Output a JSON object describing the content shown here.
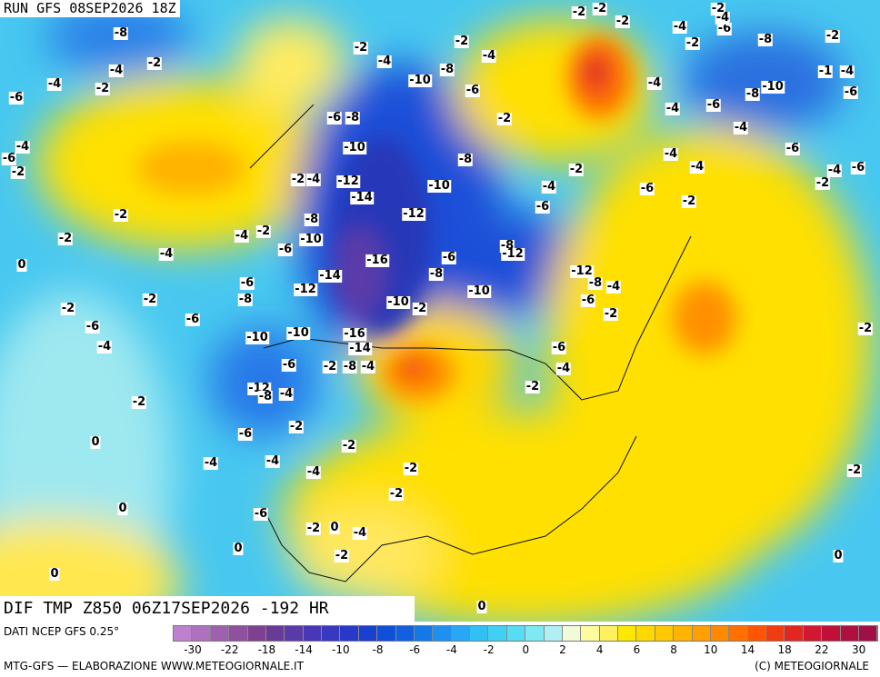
{
  "header": {
    "run": "RUN GFS 08SEP2026 18Z"
  },
  "map": {
    "contour_labels": [
      "-8",
      "-2",
      "-4",
      "-4",
      "-2",
      "-6",
      "-4",
      "-6",
      "-2",
      "-2",
      "-2",
      "0",
      "-4",
      "-2",
      "-2",
      "-6",
      "-4",
      "-6",
      "-2",
      "0",
      "0",
      "-4",
      "0",
      "0",
      "-2",
      "-4",
      "-10",
      "-8",
      "-2",
      "-4",
      "-6",
      "-2",
      "-6",
      "-8",
      "-10",
      "-8",
      "-10",
      "-12",
      "-14",
      "-12",
      "-2",
      "-4",
      "-8",
      "-10",
      "-6",
      "-4",
      "-2",
      "-16",
      "-6",
      "-8",
      "-8",
      "-12",
      "-14",
      "-12",
      "-6",
      "-8",
      "-10",
      "-2",
      "-16",
      "-14",
      "-10",
      "-10",
      "-6",
      "-2",
      "-8",
      "-4",
      "-12",
      "-8",
      "-4",
      "-6",
      "-2",
      "-4",
      "-4",
      "-2",
      "-2",
      "-2",
      "-6",
      "-2",
      "0",
      "-4",
      "-2",
      "-10",
      "-12",
      "-8",
      "-4",
      "-6",
      "-2",
      "-6",
      "-4",
      "-2",
      "-2",
      "-6",
      "-6",
      "-4",
      "-2",
      "-4",
      "-4",
      "-4",
      "-4",
      "-2",
      "-4",
      "-6",
      "-8",
      "-2",
      "-1",
      "-4",
      "-8",
      "-10",
      "-6",
      "-6",
      "-4",
      "-6",
      "-4",
      "-6",
      "-2",
      "-2",
      "-2",
      "0",
      "0",
      "-2",
      "-2",
      "-2",
      "-2",
      "-4"
    ]
  },
  "footer": {
    "title": "DIF TMP Z850 06Z17SEP2026 -192 HR",
    "source": "DATI NCEP GFS 0.25°",
    "credit": "MTG-GFS — ELABORAZIONE WWW.METEOGIORNALE.IT",
    "copyright": "(C) METEOGIORNALE"
  },
  "colorbar": {
    "colors": [
      "#c080d0",
      "#b070c0",
      "#a060b0",
      "#9050a0",
      "#804090",
      "#6a3a98",
      "#5a3aa8",
      "#4838b8",
      "#3838c0",
      "#2838c8",
      "#1a40d0",
      "#1050d8",
      "#1060e0",
      "#1578e8",
      "#2090f0",
      "#28a8f4",
      "#30c0f4",
      "#40d0f4",
      "#58dcf4",
      "#80e8f4",
      "#b0f0f4",
      "#f0fcd8",
      "#fffca0",
      "#fff060",
      "#ffe800",
      "#ffd800",
      "#ffc800",
      "#ffb400",
      "#ffa000",
      "#ff8a00",
      "#ff7000",
      "#ff5400",
      "#f03c10",
      "#e02820",
      "#d01830",
      "#c01038",
      "#b01040",
      "#a01048"
    ],
    "ticks": [
      "-30",
      "-22",
      "-18",
      "-14",
      "-10",
      "-8",
      "-6",
      "-4",
      "-2",
      "0",
      "2",
      "4",
      "6",
      "8",
      "10",
      "14",
      "18",
      "22",
      "30"
    ]
  }
}
